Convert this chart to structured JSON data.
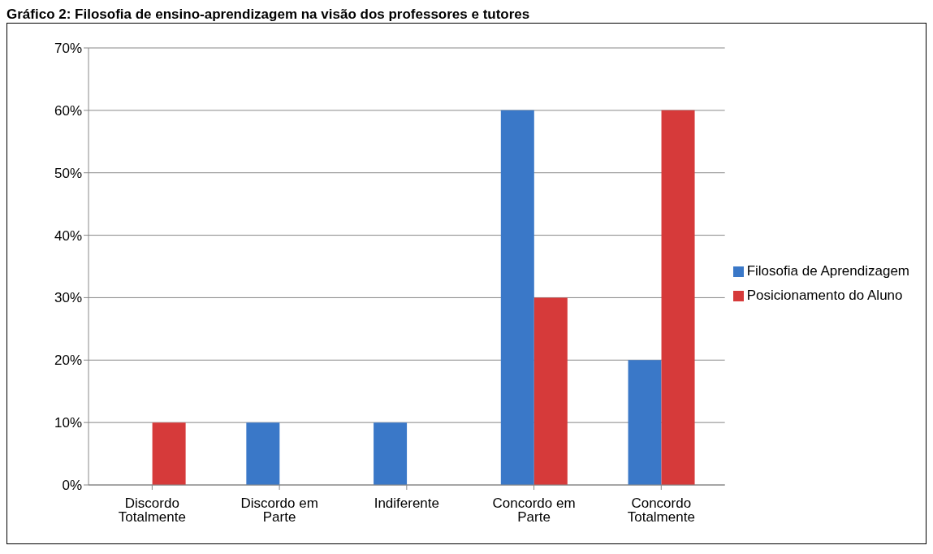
{
  "chart_data": {
    "type": "bar",
    "title": "Gráfico 2: Filosofia de ensino-aprendizagem na visão dos professores e tutores",
    "categories": [
      "Discordo Totalmente",
      "Discordo em Parte",
      "Indiferente",
      "Concordo em Parte",
      "Concordo Totalmente"
    ],
    "series": [
      {
        "name": "Filosofia de Aprendizagem",
        "color": "#3a78c8",
        "values": [
          0,
          0.1,
          0.1,
          0.6,
          0.2
        ]
      },
      {
        "name": "Posicionamento do Aluno",
        "color": "#d63a3a",
        "values": [
          0.1,
          0,
          0,
          0.3,
          0.6
        ]
      }
    ],
    "ylim": [
      0,
      0.7
    ],
    "yticks": [
      {
        "value": 0,
        "label": "0%"
      },
      {
        "value": 0.1,
        "label": "10%"
      },
      {
        "value": 0.2,
        "label": "20%"
      },
      {
        "value": 0.3,
        "label": "30%"
      },
      {
        "value": 0.4,
        "label": "40%"
      },
      {
        "value": 0.5,
        "label": "50%"
      },
      {
        "value": 0.6,
        "label": "60%"
      },
      {
        "value": 0.7,
        "label": "70%"
      }
    ],
    "grid": "y",
    "legend": "right"
  }
}
